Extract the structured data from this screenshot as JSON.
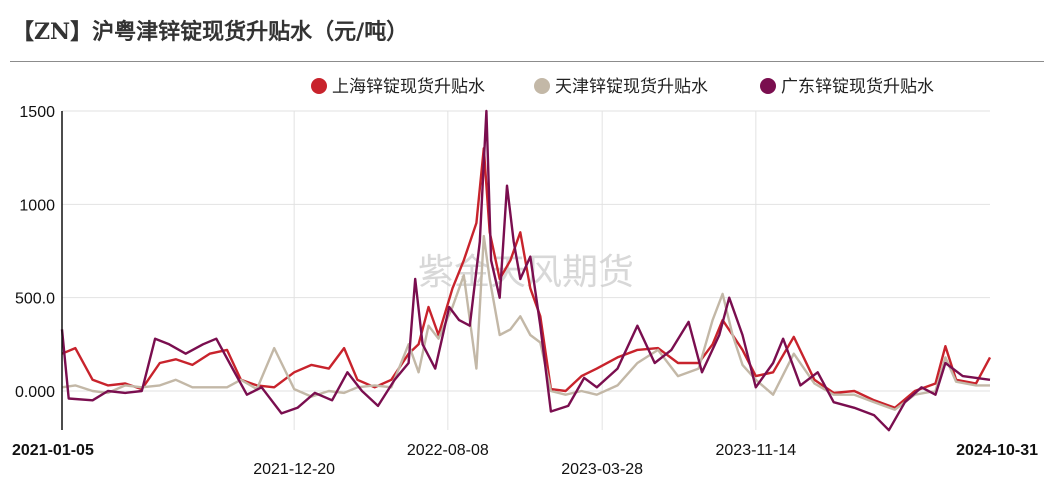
{
  "title": "【ZN】沪粤津锌锭现货升贴水（元/吨）",
  "watermark": "紫金天风期货",
  "chart_data": {
    "type": "line",
    "title": "【ZN】沪粤津锌锭现货升贴水（元/吨）",
    "x_start": "2021-01-05",
    "x_end": "2024-10-31",
    "x_ticks": [
      {
        "label": "2021-01-05",
        "date": "2021-01-05",
        "bold": true,
        "row": 0
      },
      {
        "label": "2021-12-20",
        "date": "2021-12-20",
        "bold": false,
        "row": 1
      },
      {
        "label": "2022-08-08",
        "date": "2022-08-08",
        "bold": false,
        "row": 0
      },
      {
        "label": "2023-03-28",
        "date": "2023-03-28",
        "bold": false,
        "row": 1
      },
      {
        "label": "2023-11-14",
        "date": "2023-11-14",
        "bold": false,
        "row": 0
      },
      {
        "label": "2024-10-31",
        "date": "2024-10-31",
        "bold": true,
        "row": 0
      }
    ],
    "y_ticks": [
      {
        "value": 0,
        "label": "0.000"
      },
      {
        "value": 500,
        "label": "500.0"
      },
      {
        "value": 1000,
        "label": "1000"
      },
      {
        "value": 1500,
        "label": "1500"
      }
    ],
    "ylim": [
      -200,
      1500
    ],
    "grid": true,
    "legend_position": "top-right",
    "series": [
      {
        "name": "上海锌锭现货升贴水",
        "color": "#c8232c",
        "points": [
          [
            "2021-01-05",
            200
          ],
          [
            "2021-01-25",
            230
          ],
          [
            "2021-02-20",
            60
          ],
          [
            "2021-03-15",
            30
          ],
          [
            "2021-04-10",
            40
          ],
          [
            "2021-05-05",
            10
          ],
          [
            "2021-06-01",
            150
          ],
          [
            "2021-06-25",
            170
          ],
          [
            "2021-07-20",
            140
          ],
          [
            "2021-08-15",
            200
          ],
          [
            "2021-09-10",
            220
          ],
          [
            "2021-10-01",
            60
          ],
          [
            "2021-10-25",
            30
          ],
          [
            "2021-11-20",
            20
          ],
          [
            "2021-12-20",
            100
          ],
          [
            "2022-01-15",
            140
          ],
          [
            "2022-02-10",
            120
          ],
          [
            "2022-03-05",
            230
          ],
          [
            "2022-03-25",
            60
          ],
          [
            "2022-04-20",
            20
          ],
          [
            "2022-05-15",
            60
          ],
          [
            "2022-06-10",
            200
          ],
          [
            "2022-06-25",
            250
          ],
          [
            "2022-07-10",
            450
          ],
          [
            "2022-07-25",
            300
          ],
          [
            "2022-08-15",
            550
          ],
          [
            "2022-09-01",
            700
          ],
          [
            "2022-09-20",
            900
          ],
          [
            "2022-10-01",
            1300
          ],
          [
            "2022-10-10",
            850
          ],
          [
            "2022-10-25",
            600
          ],
          [
            "2022-11-10",
            700
          ],
          [
            "2022-11-25",
            850
          ],
          [
            "2022-12-10",
            550
          ],
          [
            "2022-12-25",
            400
          ],
          [
            "2023-01-10",
            10
          ],
          [
            "2023-02-01",
            0
          ],
          [
            "2023-02-25",
            80
          ],
          [
            "2023-03-20",
            120
          ],
          [
            "2023-04-20",
            180
          ],
          [
            "2023-05-20",
            220
          ],
          [
            "2023-06-20",
            230
          ],
          [
            "2023-07-20",
            150
          ],
          [
            "2023-08-20",
            150
          ],
          [
            "2023-09-10",
            250
          ],
          [
            "2023-09-25",
            380
          ],
          [
            "2023-10-10",
            300
          ],
          [
            "2023-10-25",
            220
          ],
          [
            "2023-11-14",
            80
          ],
          [
            "2023-12-10",
            100
          ],
          [
            "2024-01-10",
            290
          ],
          [
            "2024-02-10",
            60
          ],
          [
            "2024-03-10",
            -10
          ],
          [
            "2024-04-10",
            0
          ],
          [
            "2024-05-10",
            -50
          ],
          [
            "2024-06-10",
            -90
          ],
          [
            "2024-07-10",
            0
          ],
          [
            "2024-08-10",
            40
          ],
          [
            "2024-08-25",
            240
          ],
          [
            "2024-09-10",
            60
          ],
          [
            "2024-10-10",
            40
          ],
          [
            "2024-10-31",
            180
          ]
        ]
      },
      {
        "name": "天津锌锭现货升贴水",
        "color": "#c3b8a7",
        "points": [
          [
            "2021-01-05",
            20
          ],
          [
            "2021-01-25",
            30
          ],
          [
            "2021-02-20",
            0
          ],
          [
            "2021-03-15",
            -10
          ],
          [
            "2021-04-10",
            30
          ],
          [
            "2021-05-05",
            20
          ],
          [
            "2021-06-01",
            30
          ],
          [
            "2021-06-25",
            60
          ],
          [
            "2021-07-20",
            20
          ],
          [
            "2021-08-15",
            20
          ],
          [
            "2021-09-10",
            20
          ],
          [
            "2021-10-01",
            60
          ],
          [
            "2021-10-25",
            10
          ],
          [
            "2021-11-20",
            230
          ],
          [
            "2021-12-20",
            10
          ],
          [
            "2022-01-15",
            -30
          ],
          [
            "2022-02-10",
            0
          ],
          [
            "2022-03-05",
            -10
          ],
          [
            "2022-03-25",
            20
          ],
          [
            "2022-04-20",
            30
          ],
          [
            "2022-05-15",
            20
          ],
          [
            "2022-06-10",
            250
          ],
          [
            "2022-06-25",
            100
          ],
          [
            "2022-07-10",
            350
          ],
          [
            "2022-07-25",
            280
          ],
          [
            "2022-08-15",
            450
          ],
          [
            "2022-09-01",
            620
          ],
          [
            "2022-09-20",
            120
          ],
          [
            "2022-10-01",
            830
          ],
          [
            "2022-10-10",
            600
          ],
          [
            "2022-10-25",
            300
          ],
          [
            "2022-11-10",
            330
          ],
          [
            "2022-11-25",
            400
          ],
          [
            "2022-12-10",
            300
          ],
          [
            "2022-12-25",
            260
          ],
          [
            "2023-01-10",
            0
          ],
          [
            "2023-02-01",
            -20
          ],
          [
            "2023-02-25",
            0
          ],
          [
            "2023-03-20",
            -20
          ],
          [
            "2023-04-20",
            30
          ],
          [
            "2023-05-20",
            150
          ],
          [
            "2023-06-20",
            220
          ],
          [
            "2023-07-20",
            80
          ],
          [
            "2023-08-20",
            120
          ],
          [
            "2023-09-10",
            380
          ],
          [
            "2023-09-25",
            520
          ],
          [
            "2023-10-10",
            300
          ],
          [
            "2023-10-25",
            140
          ],
          [
            "2023-11-14",
            60
          ],
          [
            "2023-12-10",
            -20
          ],
          [
            "2024-01-10",
            200
          ],
          [
            "2024-02-10",
            40
          ],
          [
            "2024-03-10",
            -20
          ],
          [
            "2024-04-10",
            -20
          ],
          [
            "2024-05-10",
            -60
          ],
          [
            "2024-06-10",
            -100
          ],
          [
            "2024-07-10",
            -20
          ],
          [
            "2024-08-10",
            0
          ],
          [
            "2024-08-25",
            180
          ],
          [
            "2024-09-10",
            50
          ],
          [
            "2024-10-10",
            30
          ],
          [
            "2024-10-31",
            30
          ]
        ]
      },
      {
        "name": "广东锌锭现货升贴水",
        "color": "#7a0e4f",
        "points": [
          [
            "2021-01-05",
            330
          ],
          [
            "2021-01-15",
            -40
          ],
          [
            "2021-02-20",
            -50
          ],
          [
            "2021-03-15",
            0
          ],
          [
            "2021-04-10",
            -10
          ],
          [
            "2021-05-05",
            0
          ],
          [
            "2021-05-25",
            280
          ],
          [
            "2021-06-15",
            250
          ],
          [
            "2021-07-10",
            200
          ],
          [
            "2021-08-05",
            250
          ],
          [
            "2021-08-25",
            280
          ],
          [
            "2021-09-20",
            110
          ],
          [
            "2021-10-10",
            -20
          ],
          [
            "2021-11-01",
            20
          ],
          [
            "2021-12-01",
            -120
          ],
          [
            "2021-12-25",
            -90
          ],
          [
            "2022-01-20",
            -10
          ],
          [
            "2022-02-15",
            -50
          ],
          [
            "2022-03-10",
            100
          ],
          [
            "2022-04-01",
            0
          ],
          [
            "2022-04-25",
            -80
          ],
          [
            "2022-05-20",
            60
          ],
          [
            "2022-06-10",
            150
          ],
          [
            "2022-06-20",
            600
          ],
          [
            "2022-07-01",
            250
          ],
          [
            "2022-07-20",
            120
          ],
          [
            "2022-08-10",
            450
          ],
          [
            "2022-08-25",
            380
          ],
          [
            "2022-09-10",
            350
          ],
          [
            "2022-09-25",
            800
          ],
          [
            "2022-10-05",
            1500
          ],
          [
            "2022-10-12",
            700
          ],
          [
            "2022-10-25",
            500
          ],
          [
            "2022-11-05",
            1100
          ],
          [
            "2022-11-15",
            800
          ],
          [
            "2022-11-25",
            600
          ],
          [
            "2022-12-10",
            720
          ],
          [
            "2022-12-25",
            350
          ],
          [
            "2023-01-10",
            -110
          ],
          [
            "2023-02-05",
            -80
          ],
          [
            "2023-03-01",
            70
          ],
          [
            "2023-03-20",
            20
          ],
          [
            "2023-04-20",
            120
          ],
          [
            "2023-05-20",
            350
          ],
          [
            "2023-06-15",
            150
          ],
          [
            "2023-07-10",
            220
          ],
          [
            "2023-08-05",
            370
          ],
          [
            "2023-08-25",
            100
          ],
          [
            "2023-09-20",
            300
          ],
          [
            "2023-10-05",
            500
          ],
          [
            "2023-10-25",
            300
          ],
          [
            "2023-11-14",
            20
          ],
          [
            "2023-12-10",
            150
          ],
          [
            "2023-12-25",
            280
          ],
          [
            "2024-01-20",
            30
          ],
          [
            "2024-02-15",
            100
          ],
          [
            "2024-03-10",
            -60
          ],
          [
            "2024-04-10",
            -90
          ],
          [
            "2024-05-10",
            -130
          ],
          [
            "2024-06-01",
            -210
          ],
          [
            "2024-06-25",
            -60
          ],
          [
            "2024-07-20",
            20
          ],
          [
            "2024-08-10",
            -20
          ],
          [
            "2024-08-25",
            150
          ],
          [
            "2024-09-20",
            80
          ],
          [
            "2024-10-31",
            60
          ]
        ]
      }
    ]
  }
}
